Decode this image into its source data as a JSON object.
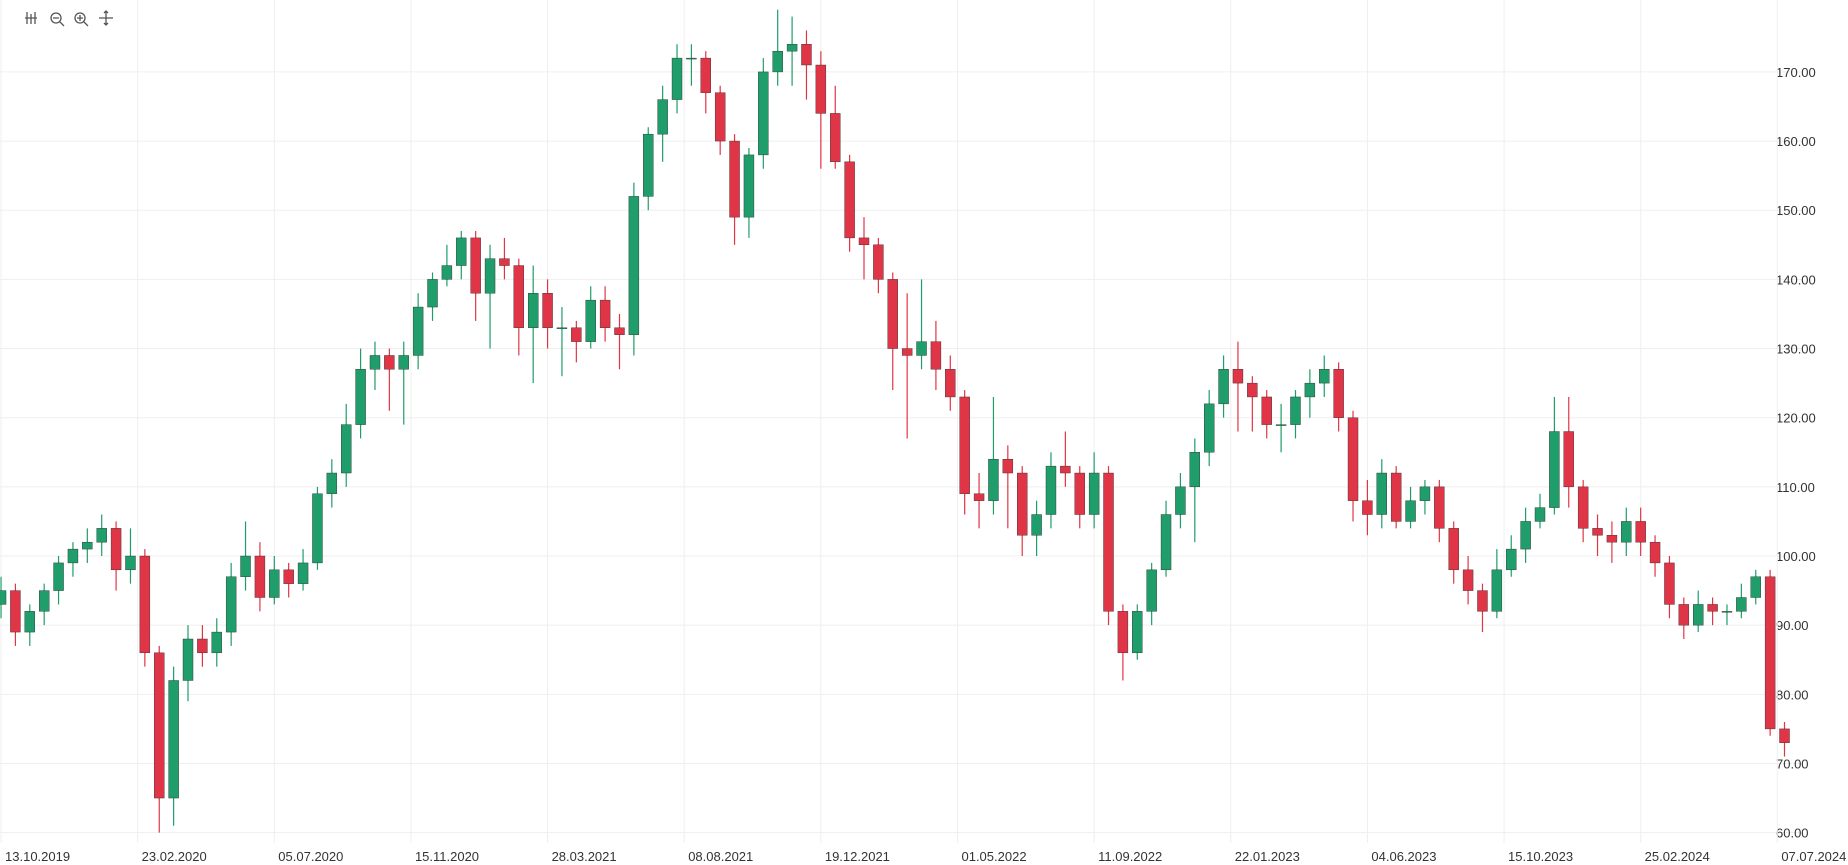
{
  "chart_data": {
    "type": "candlestick",
    "x": [
      "13.10.2019",
      "27.10.2019",
      "10.11.2019",
      "24.11.2019",
      "08.12.2019",
      "22.12.2019",
      "05.01.2020",
      "19.01.2020",
      "02.02.2020",
      "16.02.2020",
      "01.03.2020",
      "15.03.2020",
      "29.03.2020",
      "12.04.2020",
      "26.04.2020",
      "10.05.2020",
      "24.05.2020",
      "07.06.2020",
      "21.06.2020",
      "05.07.2020",
      "19.07.2020",
      "02.08.2020",
      "16.08.2020",
      "30.08.2020",
      "13.09.2020",
      "27.09.2020",
      "11.10.2020",
      "25.10.2020",
      "08.11.2020",
      "22.11.2020",
      "06.12.2020",
      "20.12.2020",
      "03.01.2021",
      "17.01.2021",
      "31.01.2021",
      "14.02.2021",
      "28.02.2021",
      "14.03.2021",
      "28.03.2021",
      "11.04.2021",
      "25.04.2021",
      "09.05.2021",
      "23.05.2021",
      "06.06.2021",
      "20.06.2021",
      "04.07.2021",
      "18.07.2021",
      "01.08.2021",
      "15.08.2021",
      "29.08.2021",
      "12.09.2021",
      "26.09.2021",
      "10.10.2021",
      "24.10.2021",
      "07.11.2021",
      "21.11.2021",
      "05.12.2021",
      "19.12.2021",
      "02.01.2022",
      "16.01.2022",
      "30.01.2022",
      "13.02.2022",
      "27.02.2022",
      "13.03.2022",
      "27.03.2022",
      "10.04.2022",
      "24.04.2022",
      "08.05.2022",
      "22.05.2022",
      "05.06.2022",
      "19.06.2022",
      "03.07.2022",
      "17.07.2022",
      "31.07.2022",
      "14.08.2022",
      "28.08.2022",
      "11.09.2022",
      "25.09.2022",
      "09.10.2022",
      "23.10.2022",
      "06.11.2022",
      "20.11.2022",
      "04.12.2022",
      "18.12.2022",
      "01.01.2023",
      "15.01.2023",
      "29.01.2023",
      "12.02.2023",
      "26.02.2023",
      "12.03.2023",
      "26.03.2023",
      "09.04.2023",
      "23.04.2023",
      "07.05.2023",
      "21.05.2023",
      "04.06.2023",
      "18.06.2023",
      "02.07.2023",
      "16.07.2023",
      "30.07.2023",
      "13.08.2023",
      "27.08.2023",
      "10.09.2023",
      "24.09.2023",
      "08.10.2023",
      "22.10.2023",
      "05.11.2023",
      "19.11.2023",
      "03.12.2023",
      "17.12.2023",
      "31.12.2023",
      "14.01.2024",
      "28.01.2024",
      "11.02.2024",
      "25.02.2024",
      "10.03.2024",
      "24.03.2024",
      "07.04.2024",
      "21.04.2024",
      "05.05.2024",
      "19.05.2024",
      "02.06.2024",
      "16.06.2024",
      "30.06.2024",
      "14.07.2024"
    ],
    "open": [
      93,
      95,
      89,
      92,
      95,
      99,
      101,
      102,
      104,
      98,
      100,
      86,
      65,
      82,
      88,
      86,
      89,
      97,
      100,
      94,
      98,
      96,
      99,
      109,
      112,
      119,
      127,
      129,
      127,
      129,
      136,
      140,
      142,
      146,
      138,
      143,
      142,
      133,
      138,
      133,
      133,
      131,
      137,
      133,
      132,
      152,
      161,
      166,
      172,
      172,
      167,
      160,
      149,
      158,
      170,
      173,
      174,
      171,
      164,
      157,
      146,
      145,
      140,
      130,
      129,
      131,
      127,
      123,
      109,
      108,
      114,
      112,
      103,
      106,
      113,
      112,
      106,
      112,
      92,
      86,
      92,
      98,
      106,
      110,
      115,
      122,
      127,
      125,
      123,
      119,
      119,
      123,
      125,
      127,
      120,
      108,
      106,
      112,
      105,
      108,
      110,
      104,
      98,
      95,
      92,
      98,
      101,
      105,
      107,
      118,
      110,
      104,
      103,
      102,
      105,
      102,
      99,
      93,
      90,
      93,
      92,
      92,
      94,
      97,
      75
    ],
    "high": [
      97,
      96,
      93,
      96,
      100,
      102,
      104,
      106,
      105,
      104,
      101,
      87,
      84,
      90,
      90,
      91,
      99,
      105,
      102,
      100,
      99,
      101,
      110,
      114,
      122,
      130,
      131,
      130,
      131,
      138,
      141,
      145,
      147,
      147,
      145,
      146,
      143,
      142,
      140,
      136,
      134,
      139,
      139,
      135,
      154,
      162,
      168,
      174,
      174,
      173,
      168,
      161,
      159,
      172,
      179,
      178,
      176,
      173,
      168,
      158,
      149,
      146,
      141,
      138,
      140,
      134,
      129,
      124,
      112,
      123,
      116,
      113,
      108,
      115,
      118,
      113,
      115,
      113,
      93,
      93,
      99,
      108,
      112,
      117,
      124,
      129,
      131,
      126,
      124,
      122,
      124,
      127,
      129,
      128,
      121,
      111,
      114,
      113,
      110,
      111,
      111,
      105,
      100,
      96,
      101,
      103,
      107,
      109,
      123,
      123,
      111,
      106,
      105,
      107,
      107,
      103,
      100,
      94,
      95,
      94,
      93,
      96,
      98,
      98,
      76
    ],
    "low": [
      91,
      87,
      87,
      90,
      93,
      97,
      99,
      100,
      95,
      96,
      84,
      60,
      61,
      79,
      84,
      84,
      87,
      95,
      92,
      93,
      94,
      95,
      98,
      107,
      110,
      117,
      124,
      121,
      119,
      127,
      134,
      139,
      140,
      134,
      130,
      140,
      129,
      125,
      130,
      126,
      128,
      130,
      131,
      127,
      129,
      150,
      157,
      164,
      168,
      164,
      158,
      145,
      146,
      156,
      168,
      168,
      166,
      156,
      156,
      144,
      140,
      138,
      124,
      117,
      127,
      124,
      121,
      106,
      104,
      106,
      104,
      100,
      100,
      104,
      110,
      104,
      104,
      90,
      82,
      85,
      90,
      97,
      104,
      102,
      113,
      120,
      118,
      118,
      117,
      115,
      117,
      120,
      123,
      118,
      105,
      103,
      104,
      104,
      104,
      106,
      102,
      96,
      93,
      89,
      91,
      97,
      99,
      104,
      106,
      107,
      102,
      100,
      99,
      100,
      100,
      97,
      91,
      88,
      89,
      90,
      90,
      91,
      93,
      74,
      71
    ],
    "close": [
      95,
      89,
      92,
      95,
      99,
      101,
      102,
      104,
      98,
      100,
      86,
      65,
      82,
      88,
      86,
      89,
      97,
      100,
      94,
      98,
      96,
      99,
      109,
      112,
      119,
      127,
      129,
      127,
      129,
      136,
      140,
      142,
      146,
      138,
      143,
      142,
      133,
      138,
      133,
      133,
      131,
      137,
      133,
      132,
      152,
      161,
      166,
      172,
      172,
      167,
      160,
      149,
      158,
      170,
      173,
      174,
      171,
      164,
      157,
      146,
      145,
      140,
      130,
      129,
      131,
      127,
      123,
      109,
      108,
      114,
      112,
      103,
      106,
      113,
      112,
      106,
      112,
      92,
      86,
      92,
      98,
      106,
      110,
      115,
      122,
      127,
      125,
      123,
      119,
      119,
      123,
      125,
      127,
      120,
      108,
      106,
      112,
      105,
      108,
      110,
      104,
      98,
      95,
      92,
      98,
      101,
      105,
      107,
      118,
      110,
      104,
      103,
      102,
      105,
      102,
      99,
      93,
      90,
      93,
      92,
      92,
      94,
      97,
      75,
      73
    ],
    "up_color": "#1f9d6a",
    "down_color": "#e03546",
    "xlim": [
      "12.10.2019",
      "01.08.2024"
    ],
    "xticks": [
      "13.10.2019",
      "23.02.2020",
      "05.07.2020",
      "15.11.2020",
      "28.03.2021",
      "08.08.2021",
      "19.12.2021",
      "01.05.2022",
      "11.09.2022",
      "22.01.2023",
      "04.06.2023",
      "15.10.2023",
      "25.02.2024",
      "07.07.2024"
    ],
    "ylim": [
      58.5,
      180.4
    ],
    "yticks": [
      {
        "value": 60,
        "label": "60.00"
      },
      {
        "value": 70,
        "label": "70.00"
      },
      {
        "value": 80,
        "label": "80.00"
      },
      {
        "value": 90,
        "label": "90.00"
      },
      {
        "value": 100,
        "label": "100.00"
      },
      {
        "value": 110,
        "label": "110.00"
      },
      {
        "value": 120,
        "label": "120.00"
      },
      {
        "value": 130,
        "label": "130.00"
      },
      {
        "value": 140,
        "label": "140.00"
      },
      {
        "value": 150,
        "label": "150.00"
      },
      {
        "value": 160,
        "label": "160.00"
      },
      {
        "value": 170,
        "label": "170.00"
      }
    ],
    "grid": true
  }
}
